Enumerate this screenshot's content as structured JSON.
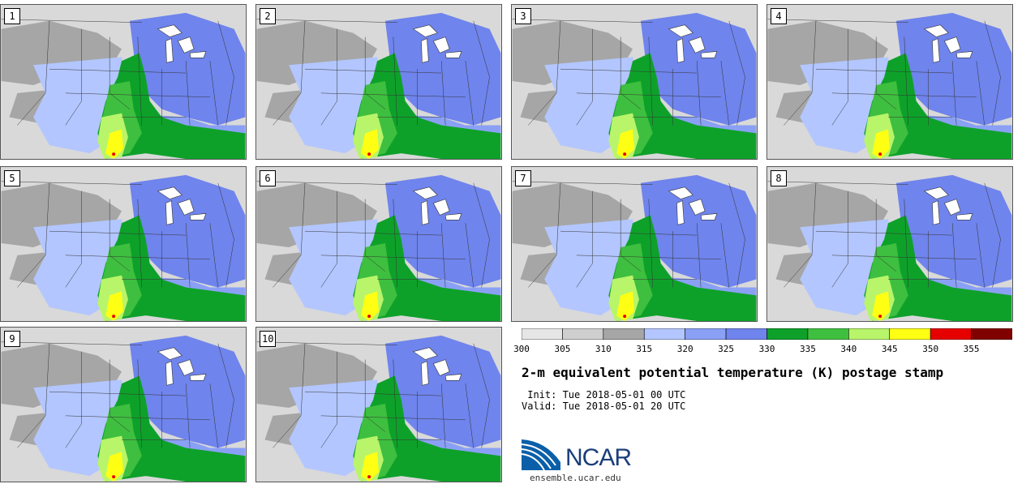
{
  "panels": [
    {
      "label": "1"
    },
    {
      "label": "2"
    },
    {
      "label": "3"
    },
    {
      "label": "4"
    },
    {
      "label": "5"
    },
    {
      "label": "6"
    },
    {
      "label": "7"
    },
    {
      "label": "8"
    },
    {
      "label": "9"
    },
    {
      "label": "10"
    }
  ],
  "colorbar": {
    "bins": [
      {
        "lo": 300,
        "hi": 305,
        "color": "#e6e6e6"
      },
      {
        "lo": 305,
        "hi": 310,
        "color": "#cfcfcf"
      },
      {
        "lo": 310,
        "hi": 315,
        "color": "#a6a6a6"
      },
      {
        "lo": 315,
        "hi": 320,
        "color": "#b3c6ff"
      },
      {
        "lo": 320,
        "hi": 325,
        "color": "#8aa0f5"
      },
      {
        "lo": 325,
        "hi": 330,
        "color": "#6f84ec"
      },
      {
        "lo": 330,
        "hi": 335,
        "color": "#0ea12a"
      },
      {
        "lo": 335,
        "hi": 340,
        "color": "#3fbf3f"
      },
      {
        "lo": 340,
        "hi": 345,
        "color": "#b8f56a"
      },
      {
        "lo": 345,
        "hi": 350,
        "color": "#ffff14"
      },
      {
        "lo": 350,
        "hi": 355,
        "color": "#e60000"
      },
      {
        "lo": 355,
        "hi": 360,
        "color": "#800000"
      }
    ],
    "ticks": [
      "300",
      "305",
      "310",
      "315",
      "320",
      "325",
      "330",
      "335",
      "340",
      "345",
      "350",
      "355"
    ]
  },
  "title": "2-m equivalent potential temperature (K) postage stamp",
  "init_line": " Init: Tue 2018-05-01 00 UTC",
  "valid_line": "Valid: Tue 2018-05-01 20 UTC",
  "logo_text": "NCAR",
  "url": "ensemble.ucar.edu"
}
